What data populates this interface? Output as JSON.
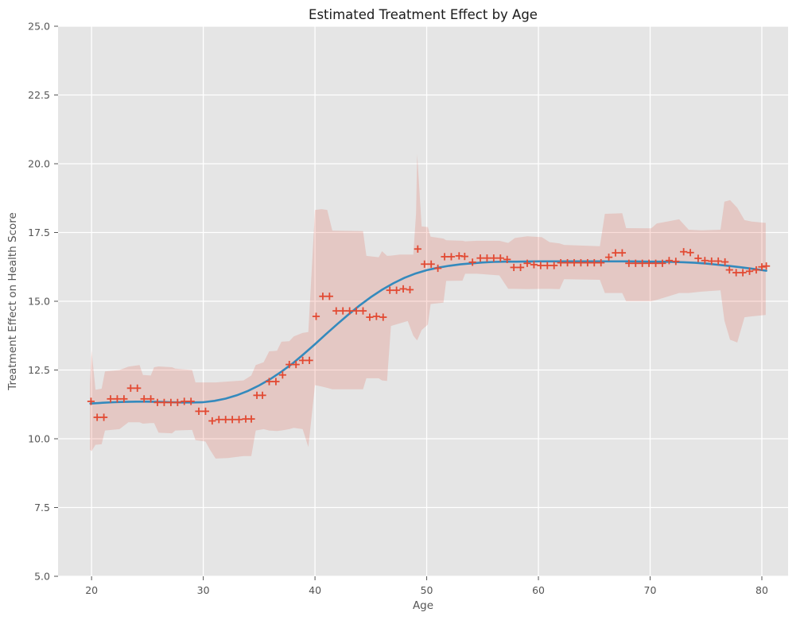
{
  "chart_data": {
    "type": "scatter",
    "title": "Estimated Treatment Effect by Age",
    "xlabel": "Age",
    "ylabel": "Treatment Effect on Health Score",
    "xlim": [
      17.0,
      82.35
    ],
    "ylim": [
      5.0,
      25.0
    ],
    "x_ticks": [
      20,
      30,
      40,
      50,
      60,
      70,
      80
    ],
    "x_tick_labels": [
      "20",
      "30",
      "40",
      "50",
      "60",
      "70",
      "80"
    ],
    "y_ticks": [
      5.0,
      7.5,
      10.0,
      12.5,
      15.0,
      17.5,
      20.0,
      22.5,
      25.0
    ],
    "y_tick_labels": [
      "5.0",
      "7.5",
      "10.0",
      "12.5",
      "15.0",
      "17.5",
      "20.0",
      "22.5",
      "25.0"
    ],
    "grid": true,
    "legend_position": "none",
    "style": {
      "figure_bg": "#FFFFFF",
      "plot_bg": "#E5E5E5",
      "grid_color": "#FFFFFF",
      "tick_label_color": "#555555",
      "axis_label_color": "#555555",
      "title_color": "#1A1A1A",
      "marker_color": "#E24A33",
      "line_color": "#348ABD",
      "band_color": "rgba(226,74,51,0.18)"
    },
    "series": [
      {
        "name": "estimated-effects-scatter",
        "type": "scatter",
        "marker": "plus",
        "points": [
          [
            19.95,
            11.36
          ],
          [
            20.5,
            10.78
          ],
          [
            21.1,
            10.78
          ],
          [
            21.7,
            11.45
          ],
          [
            22.3,
            11.45
          ],
          [
            22.9,
            11.45
          ],
          [
            23.5,
            11.84
          ],
          [
            24.1,
            11.84
          ],
          [
            24.7,
            11.45
          ],
          [
            25.3,
            11.45
          ],
          [
            25.9,
            11.32
          ],
          [
            26.5,
            11.32
          ],
          [
            27.1,
            11.32
          ],
          [
            27.7,
            11.32
          ],
          [
            28.3,
            11.36
          ],
          [
            28.9,
            11.36
          ],
          [
            29.6,
            11.0
          ],
          [
            30.2,
            11.0
          ],
          [
            30.8,
            10.65
          ],
          [
            31.4,
            10.7
          ],
          [
            32.0,
            10.7
          ],
          [
            32.6,
            10.7
          ],
          [
            33.2,
            10.7
          ],
          [
            33.8,
            10.72
          ],
          [
            34.3,
            10.72
          ],
          [
            34.8,
            11.58
          ],
          [
            35.3,
            11.58
          ],
          [
            35.9,
            12.08
          ],
          [
            36.5,
            12.08
          ],
          [
            37.1,
            12.32
          ],
          [
            37.7,
            12.7
          ],
          [
            38.3,
            12.7
          ],
          [
            38.9,
            12.85
          ],
          [
            39.5,
            12.85
          ],
          [
            40.1,
            14.45
          ],
          [
            40.7,
            15.18
          ],
          [
            41.3,
            15.18
          ],
          [
            41.9,
            14.65
          ],
          [
            42.5,
            14.65
          ],
          [
            43.1,
            14.65
          ],
          [
            43.7,
            14.65
          ],
          [
            44.3,
            14.65
          ],
          [
            44.9,
            14.42
          ],
          [
            45.5,
            14.45
          ],
          [
            46.1,
            14.42
          ],
          [
            46.7,
            15.4
          ],
          [
            47.3,
            15.4
          ],
          [
            47.9,
            15.45
          ],
          [
            48.5,
            15.42
          ],
          [
            49.2,
            16.9
          ],
          [
            49.8,
            16.35
          ],
          [
            50.4,
            16.35
          ],
          [
            51.0,
            16.2
          ],
          [
            51.6,
            16.62
          ],
          [
            52.2,
            16.62
          ],
          [
            52.9,
            16.65
          ],
          [
            53.4,
            16.63
          ],
          [
            54.1,
            16.42
          ],
          [
            54.8,
            16.57
          ],
          [
            55.4,
            16.57
          ],
          [
            56.0,
            16.57
          ],
          [
            56.6,
            16.57
          ],
          [
            57.2,
            16.52
          ],
          [
            57.8,
            16.23
          ],
          [
            58.4,
            16.23
          ],
          [
            59.0,
            16.38
          ],
          [
            59.6,
            16.33
          ],
          [
            60.2,
            16.3
          ],
          [
            60.8,
            16.3
          ],
          [
            61.4,
            16.3
          ],
          [
            62.0,
            16.4
          ],
          [
            62.6,
            16.4
          ],
          [
            63.2,
            16.4
          ],
          [
            63.8,
            16.4
          ],
          [
            64.4,
            16.4
          ],
          [
            65.0,
            16.4
          ],
          [
            65.6,
            16.4
          ],
          [
            66.3,
            16.6
          ],
          [
            66.9,
            16.76
          ],
          [
            67.5,
            16.76
          ],
          [
            68.1,
            16.38
          ],
          [
            68.7,
            16.38
          ],
          [
            69.3,
            16.38
          ],
          [
            69.9,
            16.38
          ],
          [
            70.5,
            16.38
          ],
          [
            71.1,
            16.38
          ],
          [
            71.7,
            16.48
          ],
          [
            72.3,
            16.45
          ],
          [
            73.0,
            16.8
          ],
          [
            73.6,
            16.77
          ],
          [
            74.3,
            16.56
          ],
          [
            74.9,
            16.48
          ],
          [
            75.5,
            16.46
          ],
          [
            76.1,
            16.46
          ],
          [
            76.7,
            16.43
          ],
          [
            77.1,
            16.14
          ],
          [
            77.7,
            16.04
          ],
          [
            78.3,
            16.04
          ],
          [
            78.9,
            16.09
          ],
          [
            79.5,
            16.14
          ],
          [
            80.0,
            16.25
          ],
          [
            80.4,
            16.28
          ]
        ]
      },
      {
        "name": "smoothed-fit-line",
        "type": "line",
        "points": [
          [
            19.9,
            11.28
          ],
          [
            21,
            11.31
          ],
          [
            22,
            11.33
          ],
          [
            23,
            11.34
          ],
          [
            24,
            11.35
          ],
          [
            25,
            11.35
          ],
          [
            26,
            11.34
          ],
          [
            27,
            11.33
          ],
          [
            28,
            11.32
          ],
          [
            29,
            11.32
          ],
          [
            30,
            11.33
          ],
          [
            31,
            11.38
          ],
          [
            32,
            11.46
          ],
          [
            33,
            11.58
          ],
          [
            34,
            11.74
          ],
          [
            35,
            11.94
          ],
          [
            36,
            12.17
          ],
          [
            37,
            12.44
          ],
          [
            38,
            12.74
          ],
          [
            39,
            13.08
          ],
          [
            40,
            13.44
          ],
          [
            41,
            13.81
          ],
          [
            42,
            14.17
          ],
          [
            43,
            14.52
          ],
          [
            44,
            14.85
          ],
          [
            45,
            15.15
          ],
          [
            46,
            15.42
          ],
          [
            47,
            15.65
          ],
          [
            48,
            15.85
          ],
          [
            49,
            16.01
          ],
          [
            50,
            16.13
          ],
          [
            51,
            16.22
          ],
          [
            52,
            16.29
          ],
          [
            53,
            16.34
          ],
          [
            54,
            16.38
          ],
          [
            55,
            16.41
          ],
          [
            56,
            16.43
          ],
          [
            57,
            16.44
          ],
          [
            58,
            16.44
          ],
          [
            60,
            16.45
          ],
          [
            62,
            16.45
          ],
          [
            64,
            16.45
          ],
          [
            66,
            16.45
          ],
          [
            68,
            16.45
          ],
          [
            70,
            16.44
          ],
          [
            71,
            16.44
          ],
          [
            72,
            16.43
          ],
          [
            73,
            16.42
          ],
          [
            74,
            16.4
          ],
          [
            75,
            16.37
          ],
          [
            76,
            16.33
          ],
          [
            77,
            16.29
          ],
          [
            78,
            16.24
          ],
          [
            79,
            16.19
          ],
          [
            80.4,
            16.11
          ]
        ]
      },
      {
        "name": "confidence-band",
        "type": "band",
        "points": [
          [
            19.85,
            9.6,
            12.0
          ],
          [
            20.0,
            9.55,
            13.22
          ],
          [
            20.35,
            9.78,
            11.78
          ],
          [
            20.9,
            9.8,
            11.82
          ],
          [
            21.2,
            10.3,
            12.45
          ],
          [
            22.5,
            10.35,
            12.5
          ],
          [
            23.3,
            10.6,
            12.62
          ],
          [
            24.3,
            10.6,
            12.68
          ],
          [
            24.6,
            10.55,
            12.32
          ],
          [
            25.3,
            10.57,
            12.3
          ],
          [
            25.6,
            10.57,
            12.6
          ],
          [
            26.0,
            10.22,
            12.63
          ],
          [
            27.2,
            10.2,
            12.6
          ],
          [
            27.5,
            10.3,
            12.55
          ],
          [
            29.0,
            10.32,
            12.5
          ],
          [
            29.3,
            9.95,
            12.05
          ],
          [
            30.2,
            9.9,
            12.05
          ],
          [
            30.6,
            9.6,
            12.05
          ],
          [
            31.1,
            9.28,
            12.05
          ],
          [
            32.2,
            9.3,
            12.08
          ],
          [
            33.6,
            9.37,
            12.12
          ],
          [
            34.3,
            9.37,
            12.3
          ],
          [
            34.7,
            10.3,
            12.68
          ],
          [
            35.4,
            10.35,
            12.78
          ],
          [
            35.9,
            10.3,
            13.18
          ],
          [
            36.6,
            10.28,
            13.2
          ],
          [
            37.0,
            10.3,
            13.53
          ],
          [
            37.7,
            10.35,
            13.55
          ],
          [
            38.1,
            10.4,
            13.72
          ],
          [
            38.9,
            10.35,
            13.85
          ],
          [
            39.4,
            9.7,
            13.88
          ],
          [
            40.0,
            11.95,
            18.32
          ],
          [
            40.6,
            11.9,
            18.35
          ],
          [
            41.1,
            11.85,
            18.32
          ],
          [
            41.55,
            11.8,
            17.57
          ],
          [
            44.3,
            11.8,
            17.55
          ],
          [
            44.6,
            12.2,
            16.65
          ],
          [
            45.7,
            12.2,
            16.6
          ],
          [
            46.0,
            12.12,
            16.82
          ],
          [
            46.45,
            12.1,
            16.65
          ],
          [
            46.8,
            14.1,
            16.66
          ],
          [
            47.6,
            14.2,
            16.7
          ],
          [
            48.3,
            14.28,
            16.7
          ],
          [
            48.8,
            13.75,
            16.7
          ],
          [
            49.05,
            13.62,
            18.2
          ],
          [
            49.15,
            13.58,
            20.35
          ],
          [
            49.55,
            13.95,
            17.72
          ],
          [
            50.1,
            14.15,
            17.7
          ],
          [
            50.35,
            14.9,
            17.35
          ],
          [
            51.5,
            14.95,
            17.28
          ],
          [
            51.75,
            15.74,
            17.22
          ],
          [
            53.2,
            15.75,
            17.2
          ],
          [
            53.45,
            16.0,
            17.18
          ],
          [
            54.5,
            16.0,
            17.2
          ],
          [
            56.5,
            15.94,
            17.2
          ],
          [
            57.3,
            15.45,
            17.12
          ],
          [
            57.9,
            15.45,
            17.3
          ],
          [
            59.0,
            15.44,
            17.36
          ],
          [
            60.3,
            15.45,
            17.33
          ],
          [
            61.0,
            15.45,
            17.15
          ],
          [
            61.9,
            15.44,
            17.1
          ],
          [
            62.3,
            15.8,
            17.05
          ],
          [
            65.5,
            15.78,
            17.0
          ],
          [
            65.95,
            15.3,
            18.18
          ],
          [
            67.5,
            15.3,
            18.2
          ],
          [
            67.85,
            15.0,
            17.66
          ],
          [
            70.1,
            15.0,
            17.65
          ],
          [
            70.6,
            15.05,
            17.83
          ],
          [
            71.8,
            15.2,
            17.92
          ],
          [
            72.6,
            15.3,
            17.98
          ],
          [
            73.45,
            15.3,
            17.6
          ],
          [
            74.6,
            15.35,
            17.58
          ],
          [
            76.3,
            15.4,
            17.6
          ],
          [
            76.65,
            14.3,
            18.62
          ],
          [
            77.15,
            13.6,
            18.68
          ],
          [
            77.8,
            13.5,
            18.4
          ],
          [
            78.45,
            14.42,
            17.95
          ],
          [
            79.1,
            14.45,
            17.9
          ],
          [
            80.35,
            14.5,
            17.85
          ]
        ]
      }
    ]
  }
}
